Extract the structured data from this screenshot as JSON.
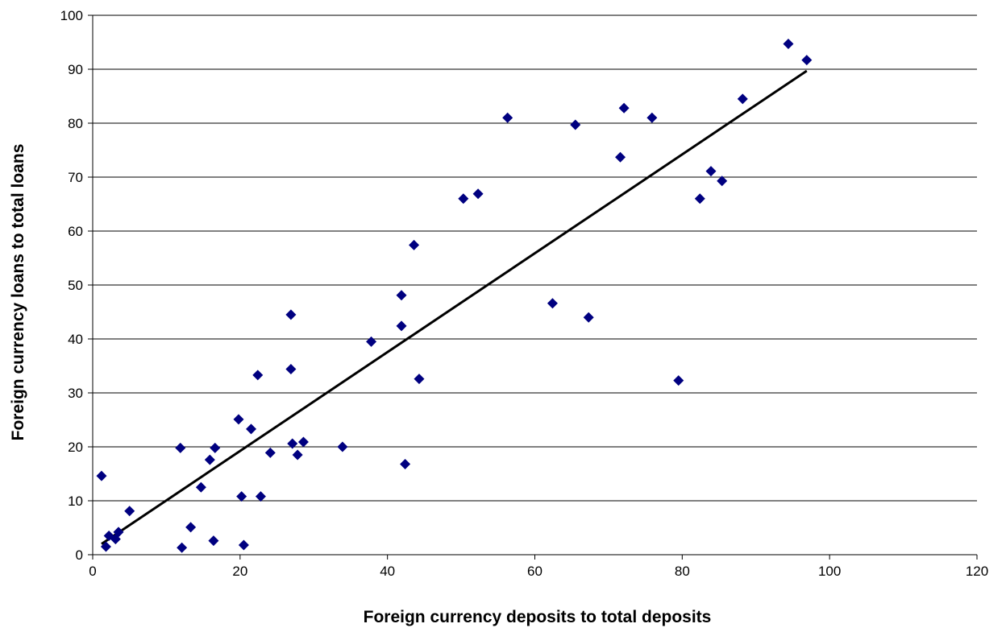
{
  "chart_data": {
    "type": "scatter",
    "title": "",
    "xlabel": "Foreign currency deposits to total deposits",
    "ylabel": "Foreign currency loans to total loans",
    "xlim": [
      0,
      120
    ],
    "ylim": [
      0,
      100
    ],
    "x_ticks": [
      0,
      20,
      40,
      60,
      80,
      100,
      120
    ],
    "y_ticks": [
      0,
      10,
      20,
      30,
      40,
      50,
      60,
      70,
      80,
      90,
      100
    ],
    "grid": "horizontal",
    "legend": "none",
    "colors": {
      "marker": "#000080",
      "trendline": "#000000",
      "gridline": "#000000"
    },
    "series": [
      {
        "marker": "diamond",
        "points": [
          [
            1.2,
            14.6
          ],
          [
            1.8,
            1.5
          ],
          [
            2.2,
            3.5
          ],
          [
            3.1,
            2.9
          ],
          [
            3.5,
            4.2
          ],
          [
            5.0,
            8.1
          ],
          [
            11.9,
            19.8
          ],
          [
            12.1,
            1.3
          ],
          [
            13.3,
            5.1
          ],
          [
            14.7,
            12.5
          ],
          [
            15.9,
            17.6
          ],
          [
            16.6,
            19.8
          ],
          [
            16.4,
            2.6
          ],
          [
            19.8,
            25.1
          ],
          [
            20.2,
            10.8
          ],
          [
            20.5,
            1.8
          ],
          [
            21.5,
            23.3
          ],
          [
            22.4,
            33.3
          ],
          [
            22.8,
            10.8
          ],
          [
            24.1,
            18.9
          ],
          [
            26.9,
            44.5
          ],
          [
            26.9,
            34.4
          ],
          [
            27.1,
            20.6
          ],
          [
            27.8,
            18.5
          ],
          [
            28.6,
            20.9
          ],
          [
            33.9,
            20.0
          ],
          [
            37.8,
            39.5
          ],
          [
            41.9,
            48.1
          ],
          [
            41.9,
            42.4
          ],
          [
            42.4,
            16.8
          ],
          [
            43.6,
            57.4
          ],
          [
            44.3,
            32.6
          ],
          [
            50.3,
            66.0
          ],
          [
            52.3,
            66.9
          ],
          [
            56.3,
            81.0
          ],
          [
            62.4,
            46.6
          ],
          [
            65.5,
            79.7
          ],
          [
            67.3,
            44.0
          ],
          [
            71.6,
            73.7
          ],
          [
            72.1,
            82.8
          ],
          [
            75.9,
            81.0
          ],
          [
            79.5,
            32.3
          ],
          [
            82.4,
            66.0
          ],
          [
            83.9,
            71.1
          ],
          [
            85.4,
            69.3
          ],
          [
            88.2,
            84.5
          ],
          [
            94.4,
            94.7
          ],
          [
            96.9,
            91.7
          ]
        ]
      }
    ],
    "trendline": {
      "type": "linear",
      "x": [
        1.2,
        96.9
      ],
      "y": [
        2.0,
        89.7
      ]
    }
  }
}
